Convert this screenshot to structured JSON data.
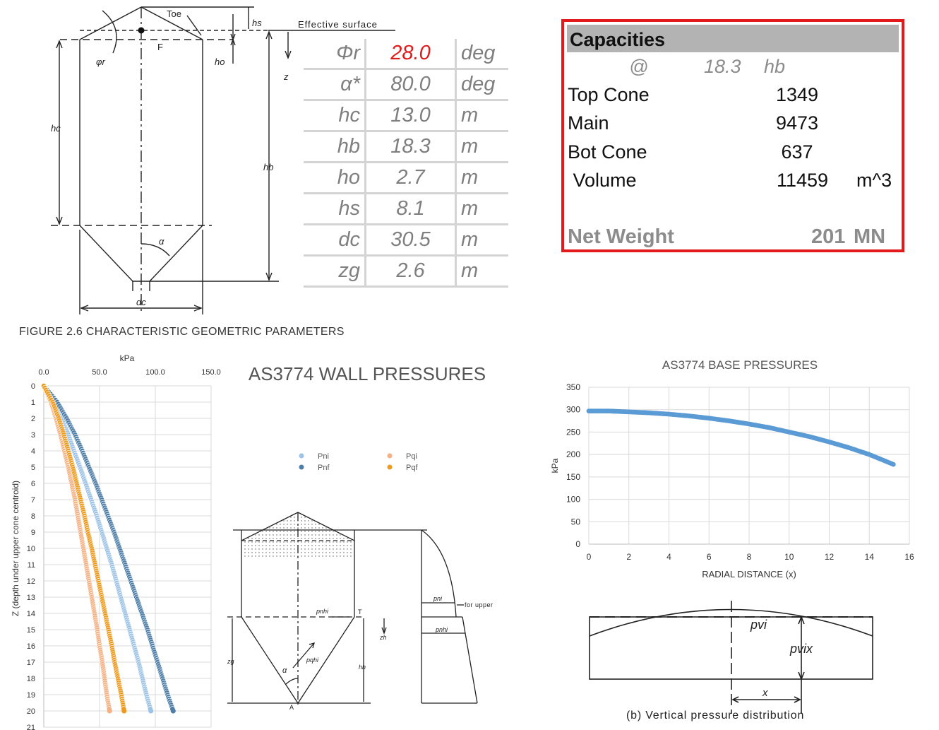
{
  "figure_caption": "FIGURE  2.6   CHARACTERISTIC GEOMETRIC PARAMETERS",
  "silo_figure": {
    "toe": "Toe",
    "effective_surface": "Effective surface",
    "F": "F",
    "phi_r": "φr",
    "hs": "hs",
    "ho": "ho",
    "z": "z",
    "hc": "hc",
    "hb": "hb",
    "alpha": "α",
    "dc": "dc"
  },
  "params": [
    {
      "symbol": "Φr",
      "value": "28.0",
      "unit": "deg",
      "highlight": true
    },
    {
      "symbol": "α*",
      "value": "80.0",
      "unit": "deg",
      "highlight": false
    },
    {
      "symbol": "hc",
      "value": "13.0",
      "unit": "m",
      "highlight": false
    },
    {
      "symbol": "hb",
      "value": "18.3",
      "unit": "m",
      "highlight": false
    },
    {
      "symbol": "ho",
      "value": "2.7",
      "unit": "m",
      "highlight": false
    },
    {
      "symbol": "hs",
      "value": "8.1",
      "unit": "m",
      "highlight": false
    },
    {
      "symbol": "dc",
      "value": "30.5",
      "unit": "m",
      "highlight": false
    },
    {
      "symbol": "zg",
      "value": "2.6",
      "unit": "m",
      "highlight": false
    }
  ],
  "capacities": {
    "title": "Capacities",
    "at_label": "@",
    "at_value": "18.3",
    "at_unit": "hb",
    "rows": [
      {
        "label": "Top Cone",
        "value": "1349",
        "unit": ""
      },
      {
        "label": "Main",
        "value": "9473",
        "unit": ""
      },
      {
        "label": "Bot Cone",
        "value": "637",
        "unit": ""
      },
      {
        "label": " Volume",
        "value": "11459",
        "unit": "m^3"
      }
    ],
    "net_weight_label": "Net Weight",
    "net_weight_value": "201",
    "net_weight_unit": "MN",
    "accent": "#e31a1c"
  },
  "hopper_figure": {
    "pni": "pni",
    "for_upper": "for upper",
    "pnhi": "pnhi",
    "pnhi2": "pnhi",
    "T": "T",
    "zh": "zh",
    "zg": "zg",
    "pqhi": "pqhi",
    "alpha": "α",
    "hh": "hh",
    "A": "A"
  },
  "base_figure": {
    "pvi": "pvi",
    "pvix": "pvix",
    "x": "x",
    "caption": "(b)  Vertical pressure distribution"
  },
  "chart_data": [
    {
      "type": "scatter",
      "title": "AS3774 WALL PRESSURES",
      "xlabel": "kPa",
      "ylabel": "Z (depth under upper cone centroid)",
      "xlim": [
        0,
        150
      ],
      "ylim": [
        0,
        21
      ],
      "y_inverted": true,
      "x_axis_position": "top",
      "x_ticks": [
        "0.0",
        "50.0",
        "100.0",
        "150.0"
      ],
      "y_ticks": [
        "0",
        "1",
        "2",
        "3",
        "4",
        "5",
        "6",
        "7",
        "8",
        "9",
        "10",
        "11",
        "12",
        "13",
        "14",
        "15",
        "16",
        "17",
        "18",
        "19",
        "20",
        "21"
      ],
      "grid": true,
      "legend_position": "right",
      "series": [
        {
          "name": "Pni",
          "color": "#9dc3e6",
          "points": [
            [
              0,
              0
            ],
            [
              9,
              1
            ],
            [
              16,
              2
            ],
            [
              22,
              3
            ],
            [
              27,
              4
            ],
            [
              32.5,
              5
            ],
            [
              37.5,
              6
            ],
            [
              42.5,
              7
            ],
            [
              47.5,
              8
            ],
            [
              52,
              9
            ],
            [
              56.5,
              10
            ],
            [
              61,
              11
            ],
            [
              65,
              12
            ],
            [
              69,
              13
            ],
            [
              73,
              14
            ],
            [
              77,
              15
            ],
            [
              81,
              16
            ],
            [
              85,
              17
            ],
            [
              88.5,
              18
            ],
            [
              92,
              19
            ],
            [
              96,
              20
            ]
          ]
        },
        {
          "name": "Pnf",
          "color": "#4f7fa8",
          "points": [
            [
              0,
              0
            ],
            [
              12,
              1
            ],
            [
              20.5,
              2
            ],
            [
              28,
              3
            ],
            [
              34.5,
              4
            ],
            [
              40.5,
              5
            ],
            [
              46.5,
              6
            ],
            [
              52,
              7
            ],
            [
              57.5,
              8
            ],
            [
              63,
              9
            ],
            [
              68,
              10
            ],
            [
              73,
              11
            ],
            [
              78,
              12
            ],
            [
              83,
              13
            ],
            [
              88,
              14
            ],
            [
              93,
              15
            ],
            [
              97.5,
              16
            ],
            [
              102,
              17
            ],
            [
              106.5,
              18
            ],
            [
              111,
              19
            ],
            [
              116,
              20
            ]
          ]
        },
        {
          "name": "Pqi",
          "color": "#f4b183",
          "points": [
            [
              0,
              0
            ],
            [
              6.5,
              1
            ],
            [
              11,
              2
            ],
            [
              15,
              3
            ],
            [
              18.5,
              4
            ],
            [
              22,
              5
            ],
            [
              25,
              6
            ],
            [
              28,
              7
            ],
            [
              30.5,
              8
            ],
            [
              33,
              9
            ],
            [
              35.5,
              10
            ],
            [
              38,
              11
            ],
            [
              40.5,
              12
            ],
            [
              43,
              13
            ],
            [
              45.5,
              14
            ],
            [
              48,
              15
            ],
            [
              50,
              16
            ],
            [
              52.5,
              17
            ],
            [
              54.5,
              18
            ],
            [
              56.5,
              19
            ],
            [
              59,
              20
            ]
          ]
        },
        {
          "name": "Pqf",
          "color": "#ed9b1e",
          "points": [
            [
              0,
              0
            ],
            [
              8,
              1
            ],
            [
              13.5,
              2
            ],
            [
              18,
              3
            ],
            [
              22,
              4
            ],
            [
              26,
              5
            ],
            [
              29.5,
              6
            ],
            [
              33,
              7
            ],
            [
              36.5,
              8
            ],
            [
              39.5,
              9
            ],
            [
              43,
              10
            ],
            [
              46,
              11
            ],
            [
              49,
              12
            ],
            [
              52,
              13
            ],
            [
              55,
              14
            ],
            [
              58,
              15
            ],
            [
              61,
              16
            ],
            [
              63.5,
              17
            ],
            [
              66.5,
              18
            ],
            [
              69.5,
              19
            ],
            [
              72,
              20
            ]
          ]
        }
      ]
    },
    {
      "type": "scatter",
      "title": "AS3774 BASE PRESSURES",
      "xlabel": "RADIAL DISTANCE (x)",
      "ylabel": "kPa",
      "xlim": [
        0,
        16
      ],
      "ylim": [
        0,
        350
      ],
      "x_ticks": [
        "0",
        "2",
        "4",
        "6",
        "8",
        "10",
        "12",
        "14",
        "16"
      ],
      "y_ticks": [
        "0",
        "50",
        "100",
        "150",
        "200",
        "250",
        "300",
        "350"
      ],
      "grid": true,
      "series": [
        {
          "color": "#5b9bd5",
          "points": [
            [
              0,
              297
            ],
            [
              1,
              297
            ],
            [
              2,
              295
            ],
            [
              3,
              293
            ],
            [
              4,
              290
            ],
            [
              5,
              286
            ],
            [
              6,
              281
            ],
            [
              7,
              275
            ],
            [
              8,
              268
            ],
            [
              9,
              260
            ],
            [
              10,
              250
            ],
            [
              11,
              240
            ],
            [
              12,
              228
            ],
            [
              13,
              215
            ],
            [
              14,
              200
            ],
            [
              15.2,
              178
            ]
          ]
        }
      ]
    }
  ]
}
